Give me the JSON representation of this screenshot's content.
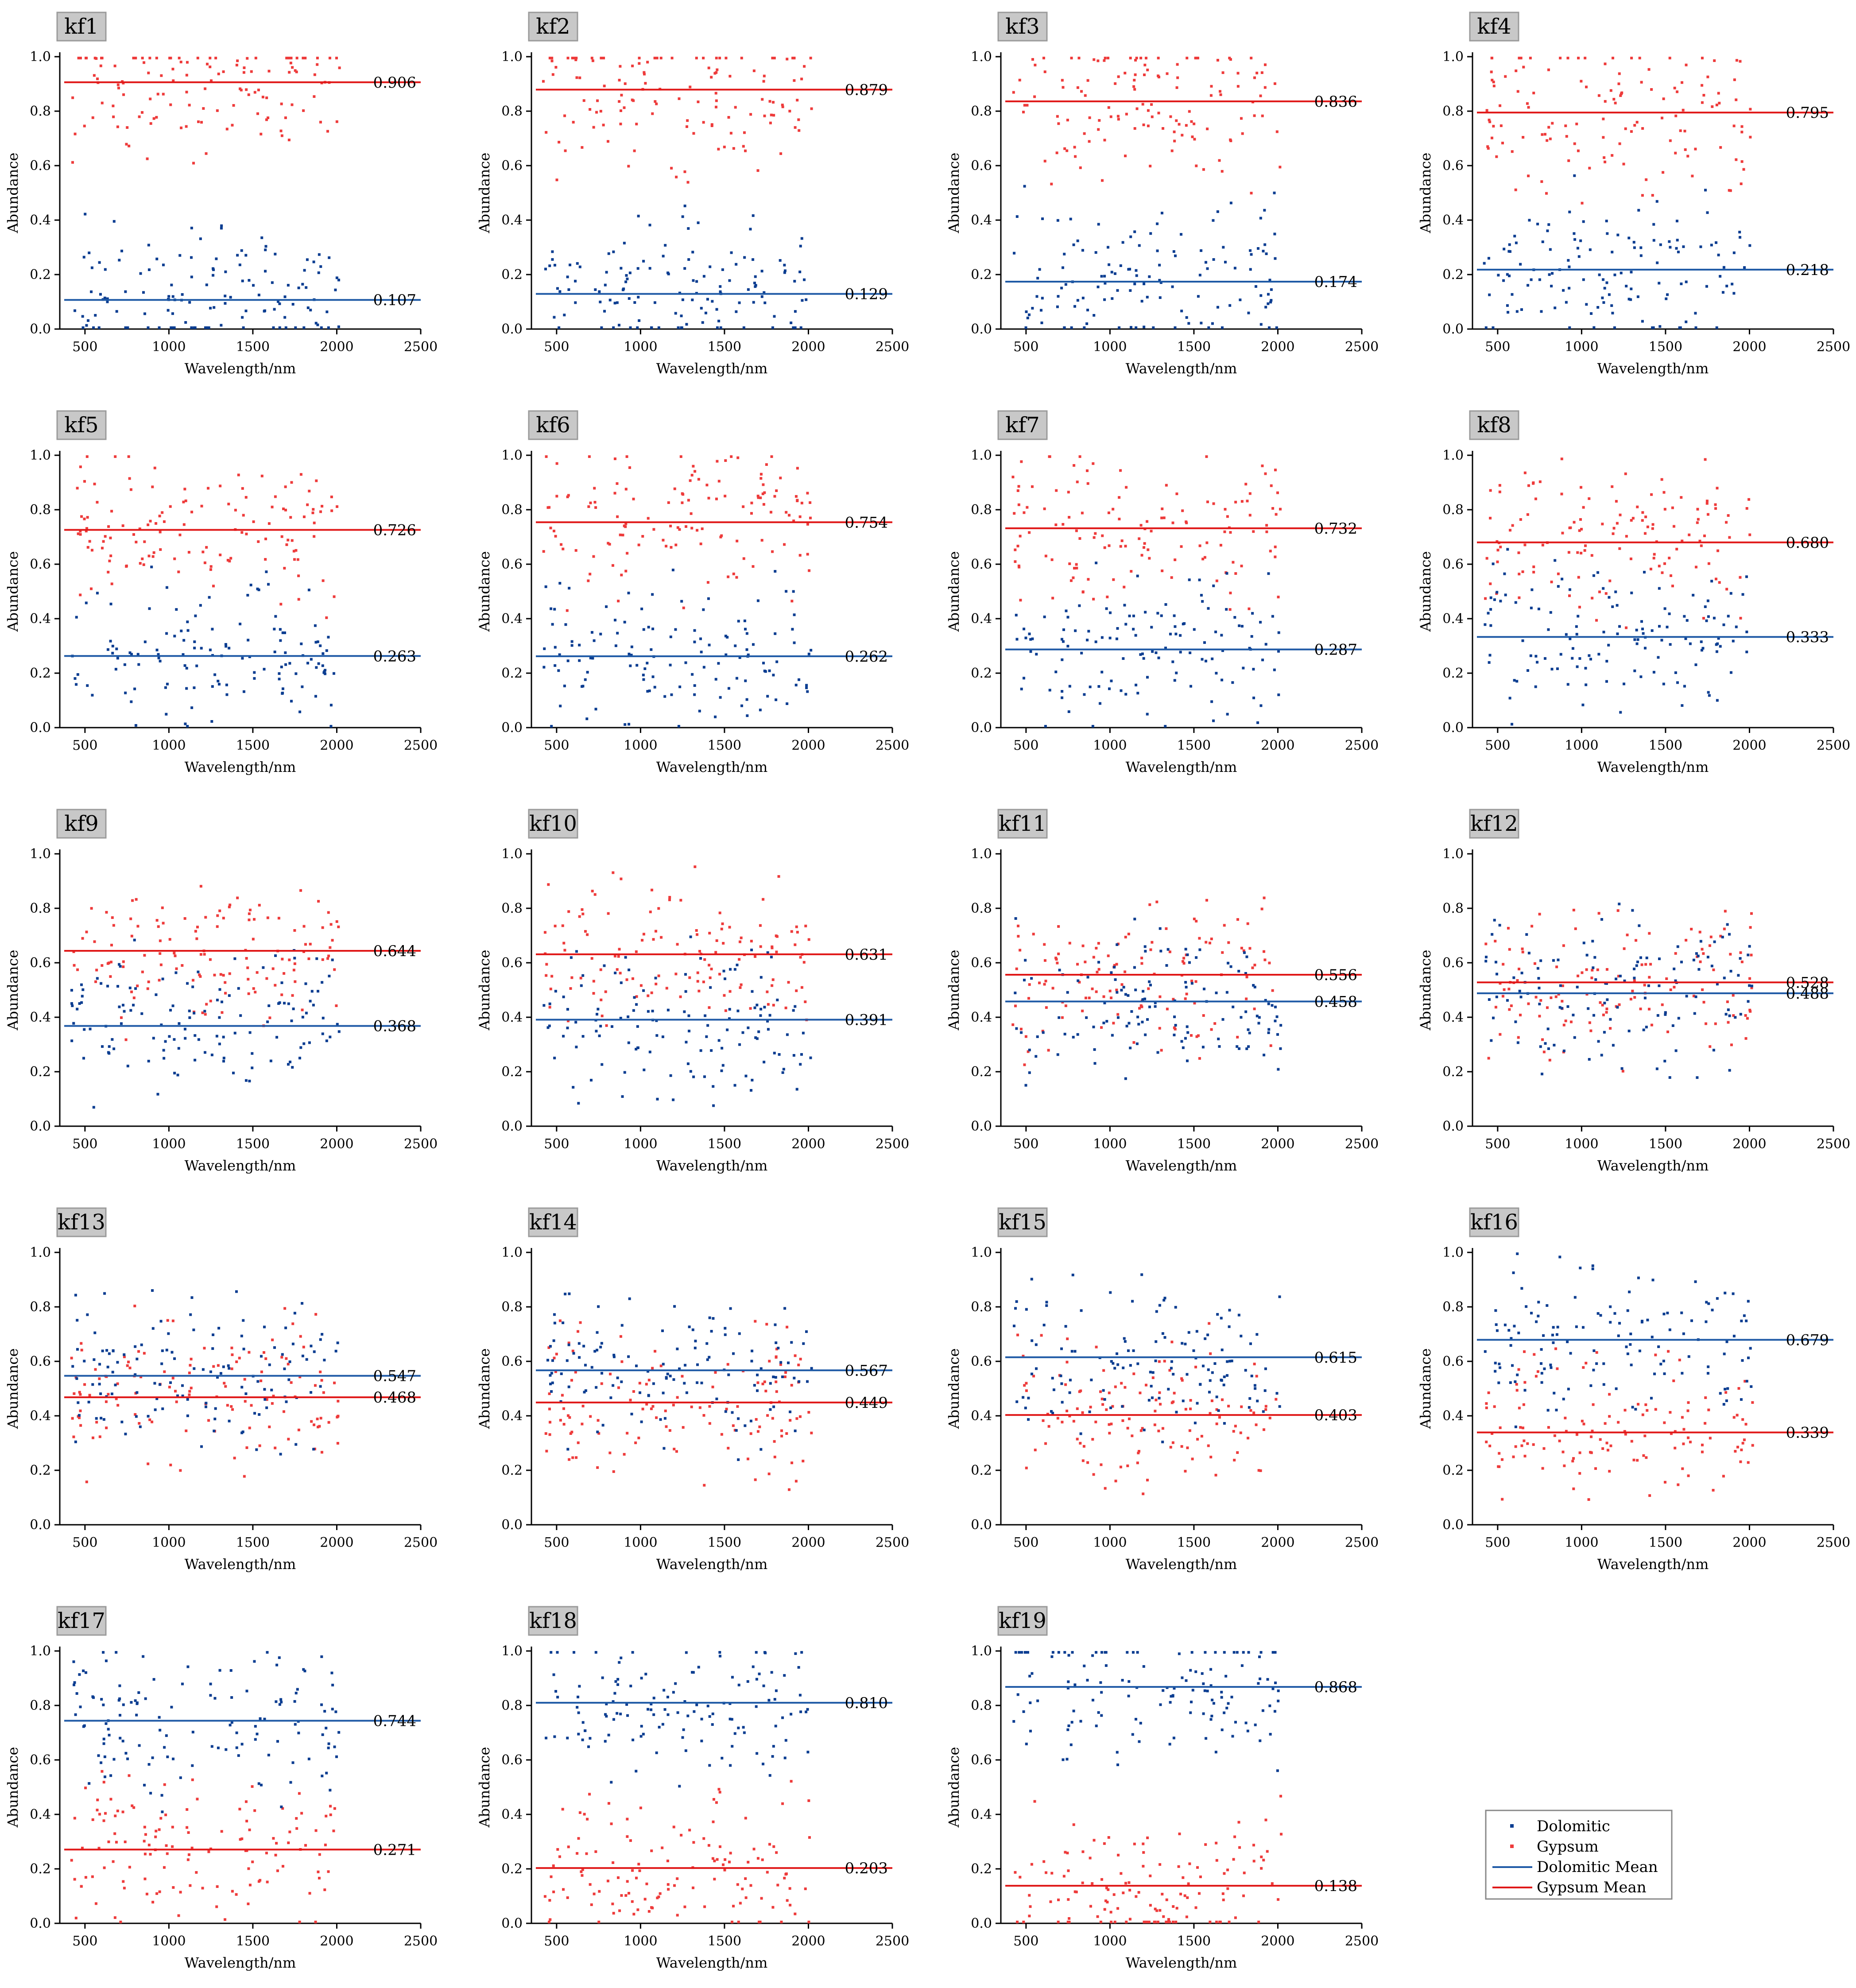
{
  "colors": {
    "dolomitic": "#0a3d91",
    "gypsum": "#ee3b3b",
    "dolomitic_mean": "#1f5aa6",
    "gypsum_mean": "#e01818",
    "tag_bg": "#c8c8c8",
    "axis": "#000000"
  },
  "legend": {
    "placement": "bottom-right",
    "items": [
      {
        "label": "Dolomitic",
        "kind": "marker",
        "color": "#0a3d91"
      },
      {
        "label": "Gypsum",
        "kind": "marker",
        "color": "#ee3b3b"
      },
      {
        "label": "Dolomitic Mean",
        "kind": "line",
        "color": "#1f5aa6"
      },
      {
        "label": "Gypsum Mean",
        "kind": "line",
        "color": "#e01818"
      }
    ]
  },
  "chart_data": [
    {
      "type": "scatter",
      "title": "kf1",
      "xlabel": "Wavelength/nm",
      "ylabel": "Abundance",
      "xlim": [
        350,
        2500
      ],
      "ylim": [
        0,
        1.0
      ],
      "xticks": [
        500,
        1000,
        1500,
        2000,
        2500
      ],
      "yticks": [
        0.0,
        0.2,
        0.4,
        0.6,
        0.8,
        1.0
      ],
      "series": [
        {
          "name": "Dolomitic",
          "mean": 0.107,
          "mean_label": "0.107"
        },
        {
          "name": "Gypsum",
          "mean": 0.906,
          "mean_label": "0.906"
        }
      ]
    },
    {
      "type": "scatter",
      "title": "kf2",
      "xlabel": "Wavelength/nm",
      "ylabel": "Abundance",
      "xlim": [
        350,
        2500
      ],
      "ylim": [
        0,
        1.0
      ],
      "xticks": [
        500,
        1000,
        1500,
        2000,
        2500
      ],
      "yticks": [
        0.0,
        0.2,
        0.4,
        0.6,
        0.8,
        1.0
      ],
      "series": [
        {
          "name": "Dolomitic",
          "mean": 0.129,
          "mean_label": "0.129"
        },
        {
          "name": "Gypsum",
          "mean": 0.879,
          "mean_label": "0.879"
        }
      ]
    },
    {
      "type": "scatter",
      "title": "kf3",
      "xlabel": "Wavelength/nm",
      "ylabel": "Abundance",
      "xlim": [
        350,
        2500
      ],
      "ylim": [
        0,
        1.0
      ],
      "xticks": [
        500,
        1000,
        1500,
        2000,
        2500
      ],
      "yticks": [
        0.0,
        0.2,
        0.4,
        0.6,
        0.8,
        1.0
      ],
      "series": [
        {
          "name": "Dolomitic",
          "mean": 0.174,
          "mean_label": "0.174"
        },
        {
          "name": "Gypsum",
          "mean": 0.836,
          "mean_label": "0.836"
        }
      ]
    },
    {
      "type": "scatter",
      "title": "kf4",
      "xlabel": "Wavelength/nm",
      "ylabel": "Abundance",
      "xlim": [
        350,
        2500
      ],
      "ylim": [
        0,
        1.0
      ],
      "xticks": [
        500,
        1000,
        1500,
        2000,
        2500
      ],
      "yticks": [
        0.0,
        0.2,
        0.4,
        0.6,
        0.8,
        1.0
      ],
      "series": [
        {
          "name": "Dolomitic",
          "mean": 0.218,
          "mean_label": "0.218"
        },
        {
          "name": "Gypsum",
          "mean": 0.795,
          "mean_label": "0.795"
        }
      ]
    },
    {
      "type": "scatter",
      "title": "kf5",
      "xlabel": "Wavelength/nm",
      "ylabel": "Abundance",
      "xlim": [
        350,
        2500
      ],
      "ylim": [
        0,
        1.0
      ],
      "xticks": [
        500,
        1000,
        1500,
        2000,
        2500
      ],
      "yticks": [
        0.0,
        0.2,
        0.4,
        0.6,
        0.8,
        1.0
      ],
      "series": [
        {
          "name": "Dolomitic",
          "mean": 0.263,
          "mean_label": "0.263"
        },
        {
          "name": "Gypsum",
          "mean": 0.726,
          "mean_label": "0.726"
        }
      ]
    },
    {
      "type": "scatter",
      "title": "kf6",
      "xlabel": "Wavelength/nm",
      "ylabel": "Abundance",
      "xlim": [
        350,
        2500
      ],
      "ylim": [
        0,
        1.0
      ],
      "xticks": [
        500,
        1000,
        1500,
        2000,
        2500
      ],
      "yticks": [
        0.0,
        0.2,
        0.4,
        0.6,
        0.8,
        1.0
      ],
      "series": [
        {
          "name": "Dolomitic",
          "mean": 0.262,
          "mean_label": "0.262"
        },
        {
          "name": "Gypsum",
          "mean": 0.754,
          "mean_label": "0.754"
        }
      ]
    },
    {
      "type": "scatter",
      "title": "kf7",
      "xlabel": "Wavelength/nm",
      "ylabel": "Abundance",
      "xlim": [
        350,
        2500
      ],
      "ylim": [
        0,
        1.0
      ],
      "xticks": [
        500,
        1000,
        1500,
        2000,
        2500
      ],
      "yticks": [
        0.0,
        0.2,
        0.4,
        0.6,
        0.8,
        1.0
      ],
      "series": [
        {
          "name": "Dolomitic",
          "mean": 0.287,
          "mean_label": "0.287"
        },
        {
          "name": "Gypsum",
          "mean": 0.732,
          "mean_label": "0.732"
        }
      ]
    },
    {
      "type": "scatter",
      "title": "kf8",
      "xlabel": "Wavelength/nm",
      "ylabel": "Abundance",
      "xlim": [
        350,
        2500
      ],
      "ylim": [
        0,
        1.0
      ],
      "xticks": [
        500,
        1000,
        1500,
        2000,
        2500
      ],
      "yticks": [
        0.0,
        0.2,
        0.4,
        0.6,
        0.8,
        1.0
      ],
      "series": [
        {
          "name": "Dolomitic",
          "mean": 0.333,
          "mean_label": "0.333"
        },
        {
          "name": "Gypsum",
          "mean": 0.68,
          "mean_label": "0.680"
        }
      ]
    },
    {
      "type": "scatter",
      "title": "kf9",
      "xlabel": "Wavelength/nm",
      "ylabel": "Abundance",
      "xlim": [
        350,
        2500
      ],
      "ylim": [
        0,
        1.0
      ],
      "xticks": [
        500,
        1000,
        1500,
        2000,
        2500
      ],
      "yticks": [
        0.0,
        0.2,
        0.4,
        0.6,
        0.8,
        1.0
      ],
      "series": [
        {
          "name": "Dolomitic",
          "mean": 0.368,
          "mean_label": "0.368"
        },
        {
          "name": "Gypsum",
          "mean": 0.644,
          "mean_label": "0.644"
        }
      ]
    },
    {
      "type": "scatter",
      "title": "kf10",
      "xlabel": "Wavelength/nm",
      "ylabel": "Abundance",
      "xlim": [
        350,
        2500
      ],
      "ylim": [
        0,
        1.0
      ],
      "xticks": [
        500,
        1000,
        1500,
        2000,
        2500
      ],
      "yticks": [
        0.0,
        0.2,
        0.4,
        0.6,
        0.8,
        1.0
      ],
      "series": [
        {
          "name": "Dolomitic",
          "mean": 0.391,
          "mean_label": "0.391"
        },
        {
          "name": "Gypsum",
          "mean": 0.631,
          "mean_label": "0.631"
        }
      ]
    },
    {
      "type": "scatter",
      "title": "kf11",
      "xlabel": "Wavelength/nm",
      "ylabel": "Abundance",
      "xlim": [
        350,
        2500
      ],
      "ylim": [
        0,
        1.0
      ],
      "xticks": [
        500,
        1000,
        1500,
        2000,
        2500
      ],
      "yticks": [
        0.0,
        0.2,
        0.4,
        0.6,
        0.8,
        1.0
      ],
      "series": [
        {
          "name": "Dolomitic",
          "mean": 0.458,
          "mean_label": "0.458"
        },
        {
          "name": "Gypsum",
          "mean": 0.556,
          "mean_label": "0.556"
        }
      ]
    },
    {
      "type": "scatter",
      "title": "kf12",
      "xlabel": "Wavelength/nm",
      "ylabel": "Abundance",
      "xlim": [
        350,
        2500
      ],
      "ylim": [
        0,
        1.0
      ],
      "xticks": [
        500,
        1000,
        1500,
        2000,
        2500
      ],
      "yticks": [
        0.0,
        0.2,
        0.4,
        0.6,
        0.8,
        1.0
      ],
      "series": [
        {
          "name": "Dolomitic",
          "mean": 0.488,
          "mean_label": "0.488"
        },
        {
          "name": "Gypsum",
          "mean": 0.528,
          "mean_label": "0.528"
        }
      ]
    },
    {
      "type": "scatter",
      "title": "kf13",
      "xlabel": "Wavelength/nm",
      "ylabel": "Abundance",
      "xlim": [
        350,
        2500
      ],
      "ylim": [
        0,
        1.0
      ],
      "xticks": [
        500,
        1000,
        1500,
        2000,
        2500
      ],
      "yticks": [
        0.0,
        0.2,
        0.4,
        0.6,
        0.8,
        1.0
      ],
      "series": [
        {
          "name": "Dolomitic",
          "mean": 0.547,
          "mean_label": "0.547"
        },
        {
          "name": "Gypsum",
          "mean": 0.468,
          "mean_label": "0.468"
        }
      ]
    },
    {
      "type": "scatter",
      "title": "kf14",
      "xlabel": "Wavelength/nm",
      "ylabel": "Abundance",
      "xlim": [
        350,
        2500
      ],
      "ylim": [
        0,
        1.0
      ],
      "xticks": [
        500,
        1000,
        1500,
        2000,
        2500
      ],
      "yticks": [
        0.0,
        0.2,
        0.4,
        0.6,
        0.8,
        1.0
      ],
      "series": [
        {
          "name": "Dolomitic",
          "mean": 0.567,
          "mean_label": "0.567"
        },
        {
          "name": "Gypsum",
          "mean": 0.449,
          "mean_label": "0.449"
        }
      ]
    },
    {
      "type": "scatter",
      "title": "kf15",
      "xlabel": "Wavelength/nm",
      "ylabel": "Abundance",
      "xlim": [
        350,
        2500
      ],
      "ylim": [
        0,
        1.0
      ],
      "xticks": [
        500,
        1000,
        1500,
        2000,
        2500
      ],
      "yticks": [
        0.0,
        0.2,
        0.4,
        0.6,
        0.8,
        1.0
      ],
      "series": [
        {
          "name": "Dolomitic",
          "mean": 0.615,
          "mean_label": "0.615"
        },
        {
          "name": "Gypsum",
          "mean": 0.403,
          "mean_label": "0.403"
        }
      ]
    },
    {
      "type": "scatter",
      "title": "kf16",
      "xlabel": "Wavelength/nm",
      "ylabel": "Abundance",
      "xlim": [
        350,
        2500
      ],
      "ylim": [
        0,
        1.0
      ],
      "xticks": [
        500,
        1000,
        1500,
        2000,
        2500
      ],
      "yticks": [
        0.0,
        0.2,
        0.4,
        0.6,
        0.8,
        1.0
      ],
      "series": [
        {
          "name": "Dolomitic",
          "mean": 0.679,
          "mean_label": "0.679"
        },
        {
          "name": "Gypsum",
          "mean": 0.339,
          "mean_label": "0.339"
        }
      ]
    },
    {
      "type": "scatter",
      "title": "kf17",
      "xlabel": "Wavelength/nm",
      "ylabel": "Abundance",
      "xlim": [
        350,
        2500
      ],
      "ylim": [
        0,
        1.0
      ],
      "xticks": [
        500,
        1000,
        1500,
        2000,
        2500
      ],
      "yticks": [
        0.0,
        0.2,
        0.4,
        0.6,
        0.8,
        1.0
      ],
      "series": [
        {
          "name": "Dolomitic",
          "mean": 0.744,
          "mean_label": "0.744"
        },
        {
          "name": "Gypsum",
          "mean": 0.271,
          "mean_label": "0.271"
        }
      ]
    },
    {
      "type": "scatter",
      "title": "kf18",
      "xlabel": "Wavelength/nm",
      "ylabel": "Abundance",
      "xlim": [
        350,
        2500
      ],
      "ylim": [
        0,
        1.0
      ],
      "xticks": [
        500,
        1000,
        1500,
        2000,
        2500
      ],
      "yticks": [
        0.0,
        0.2,
        0.4,
        0.6,
        0.8,
        1.0
      ],
      "series": [
        {
          "name": "Dolomitic",
          "mean": 0.81,
          "mean_label": "0.810"
        },
        {
          "name": "Gypsum",
          "mean": 0.203,
          "mean_label": "0.203"
        }
      ]
    },
    {
      "type": "scatter",
      "title": "kf19",
      "xlabel": "Wavelength/nm",
      "ylabel": "Abundance",
      "xlim": [
        350,
        2500
      ],
      "ylim": [
        0,
        1.0
      ],
      "xticks": [
        500,
        1000,
        1500,
        2000,
        2500
      ],
      "yticks": [
        0.0,
        0.2,
        0.4,
        0.6,
        0.8,
        1.0
      ],
      "series": [
        {
          "name": "Dolomitic",
          "mean": 0.868,
          "mean_label": "0.868"
        },
        {
          "name": "Gypsum",
          "mean": 0.138,
          "mean_label": "0.138"
        }
      ]
    }
  ]
}
